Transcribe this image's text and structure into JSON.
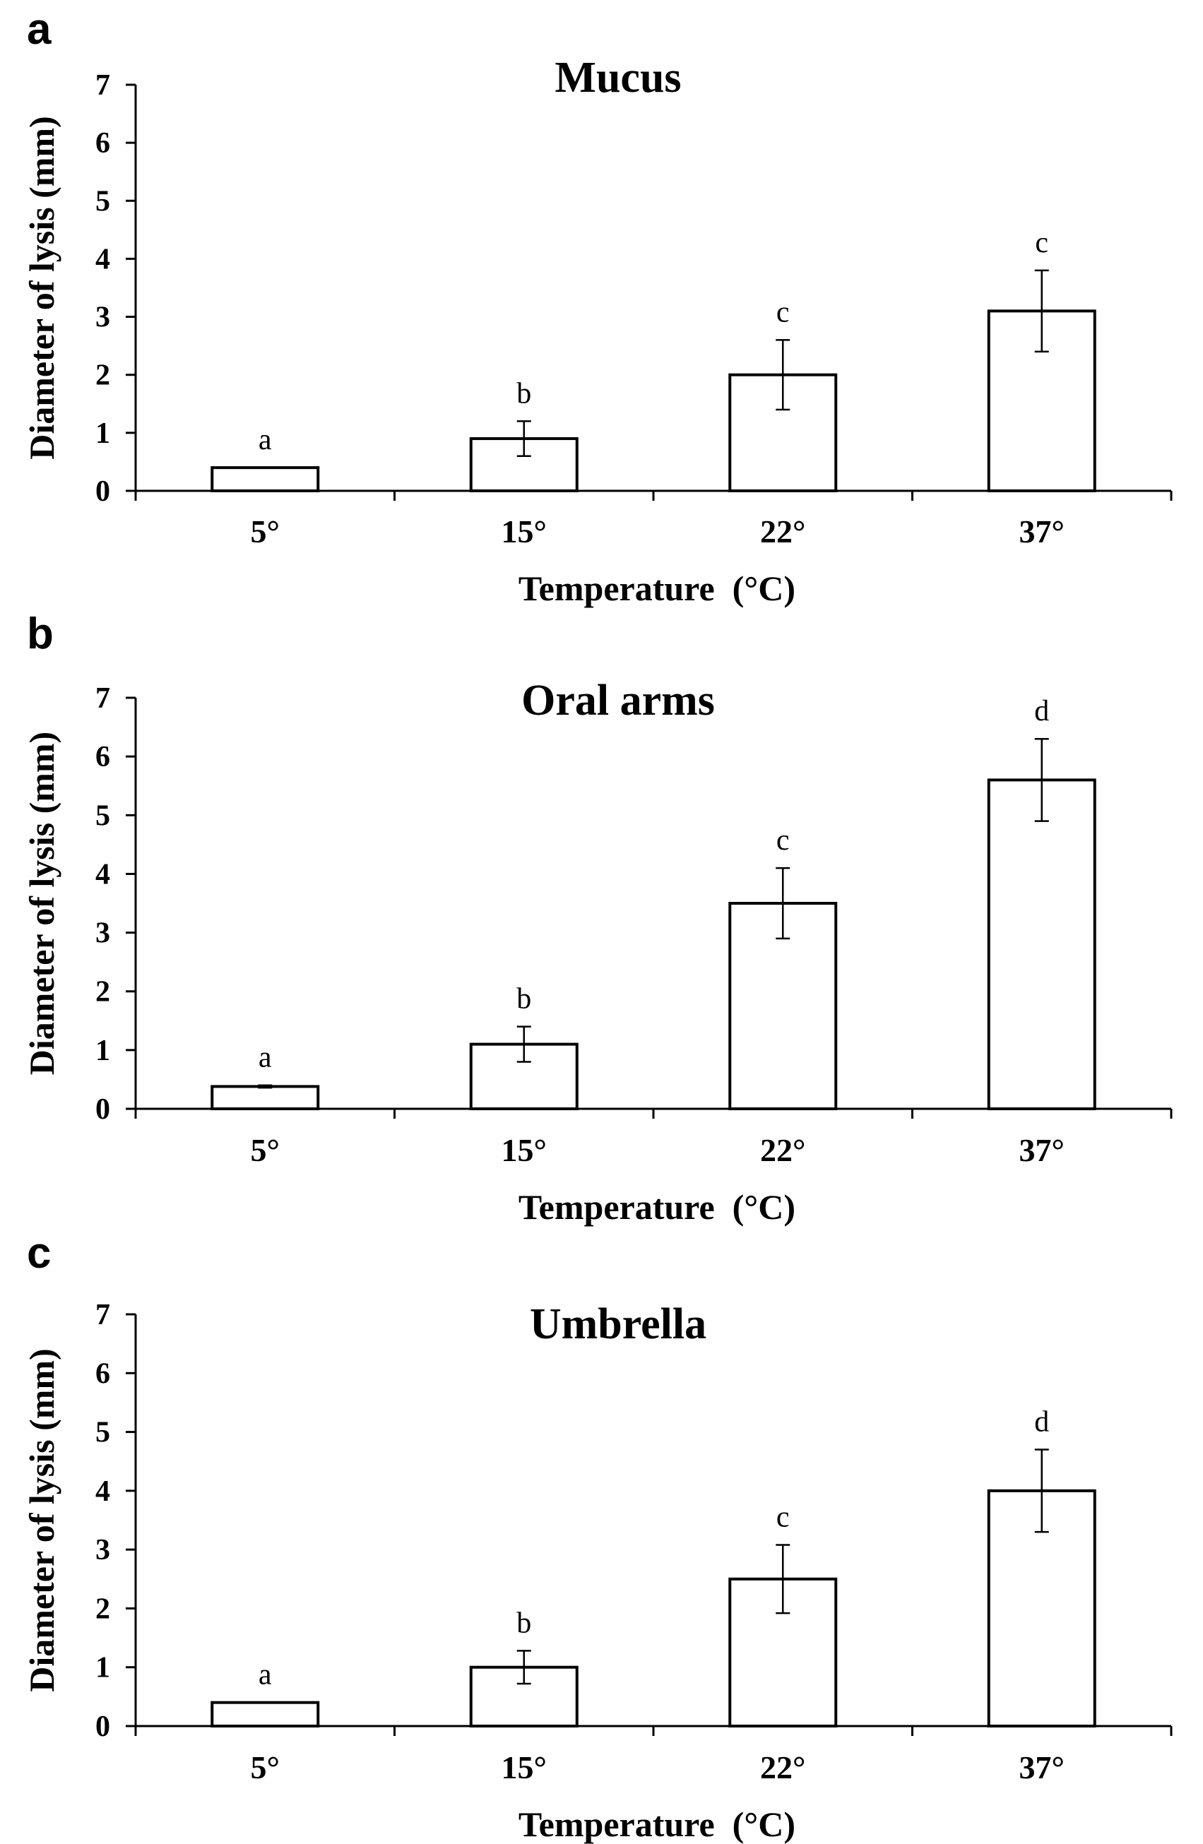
{
  "chart_data": [
    {
      "type": "bar",
      "panel": "a",
      "title": "Mucus",
      "xlabel": "Temperature  (°C)",
      "ylabel": "Diameter of lysis (mm)",
      "ylim": [
        0,
        7
      ],
      "yticks": [
        "0",
        "1",
        "2",
        "3",
        "4",
        "5",
        "6",
        "7"
      ],
      "categories": [
        "5°",
        "15°",
        "22°",
        "37°"
      ],
      "values": [
        0.4,
        0.9,
        2.0,
        3.1
      ],
      "errors": [
        0.0,
        0.3,
        0.6,
        0.7
      ],
      "significance": [
        "a",
        "b",
        "c",
        "c"
      ]
    },
    {
      "type": "bar",
      "panel": "b",
      "title": "Oral arms",
      "xlabel": "Temperature  (°C)",
      "ylabel": "Diameter of lysis (mm)",
      "ylim": [
        0,
        7
      ],
      "yticks": [
        "0",
        "1",
        "2",
        "3",
        "4",
        "5",
        "6",
        "7"
      ],
      "categories": [
        "5°",
        "15°",
        "22°",
        "37°"
      ],
      "values": [
        0.38,
        1.1,
        3.5,
        5.6
      ],
      "errors": [
        0.02,
        0.3,
        0.6,
        0.7
      ],
      "significance": [
        "a",
        "b",
        "c",
        "d"
      ]
    },
    {
      "type": "bar",
      "panel": "c",
      "title": "Umbrella",
      "xlabel": "Temperature  (°C)",
      "ylabel": "Diameter of lysis (mm)",
      "ylim": [
        0,
        7
      ],
      "yticks": [
        "0",
        "1",
        "2",
        "3",
        "4",
        "5",
        "6",
        "7"
      ],
      "categories": [
        "5°",
        "15°",
        "22°",
        "37°"
      ],
      "values": [
        0.4,
        1.0,
        2.5,
        4.0
      ],
      "errors": [
        0.0,
        0.28,
        0.58,
        0.7
      ],
      "significance": [
        "a",
        "b",
        "c",
        "d"
      ]
    }
  ]
}
